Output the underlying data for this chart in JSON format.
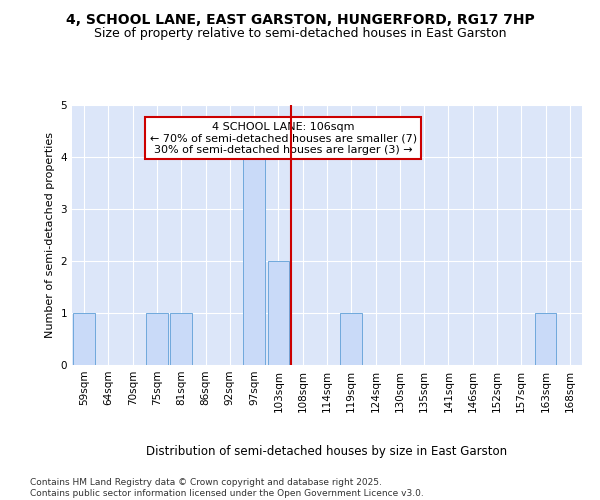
{
  "title1": "4, SCHOOL LANE, EAST GARSTON, HUNGERFORD, RG17 7HP",
  "title2": "Size of property relative to semi-detached houses in East Garston",
  "xlabel": "Distribution of semi-detached houses by size in East Garston",
  "ylabel": "Number of semi-detached properties",
  "categories": [
    "59sqm",
    "64sqm",
    "70sqm",
    "75sqm",
    "81sqm",
    "86sqm",
    "92sqm",
    "97sqm",
    "103sqm",
    "108sqm",
    "114sqm",
    "119sqm",
    "124sqm",
    "130sqm",
    "135sqm",
    "141sqm",
    "146sqm",
    "152sqm",
    "157sqm",
    "163sqm",
    "168sqm"
  ],
  "values": [
    1,
    0,
    0,
    1,
    1,
    0,
    0,
    4,
    2,
    0,
    0,
    1,
    0,
    0,
    0,
    0,
    0,
    0,
    0,
    1,
    0
  ],
  "bar_color": "#c9daf8",
  "bar_edgecolor": "#6fa8dc",
  "vline_x": 8.5,
  "vline_color": "#cc0000",
  "annotation_text": "4 SCHOOL LANE: 106sqm\n← 70% of semi-detached houses are smaller (7)\n30% of semi-detached houses are larger (3) →",
  "footer": "Contains HM Land Registry data © Crown copyright and database right 2025.\nContains public sector information licensed under the Open Government Licence v3.0.",
  "ylim": [
    0,
    5
  ],
  "yticks": [
    0,
    1,
    2,
    3,
    4,
    5
  ],
  "plot_bg_color": "#dce6f9",
  "title_fontsize": 10,
  "subtitle_fontsize": 9,
  "tick_fontsize": 7.5,
  "ylabel_fontsize": 8,
  "xlabel_fontsize": 8.5,
  "footer_fontsize": 6.5,
  "ann_fontsize": 8
}
